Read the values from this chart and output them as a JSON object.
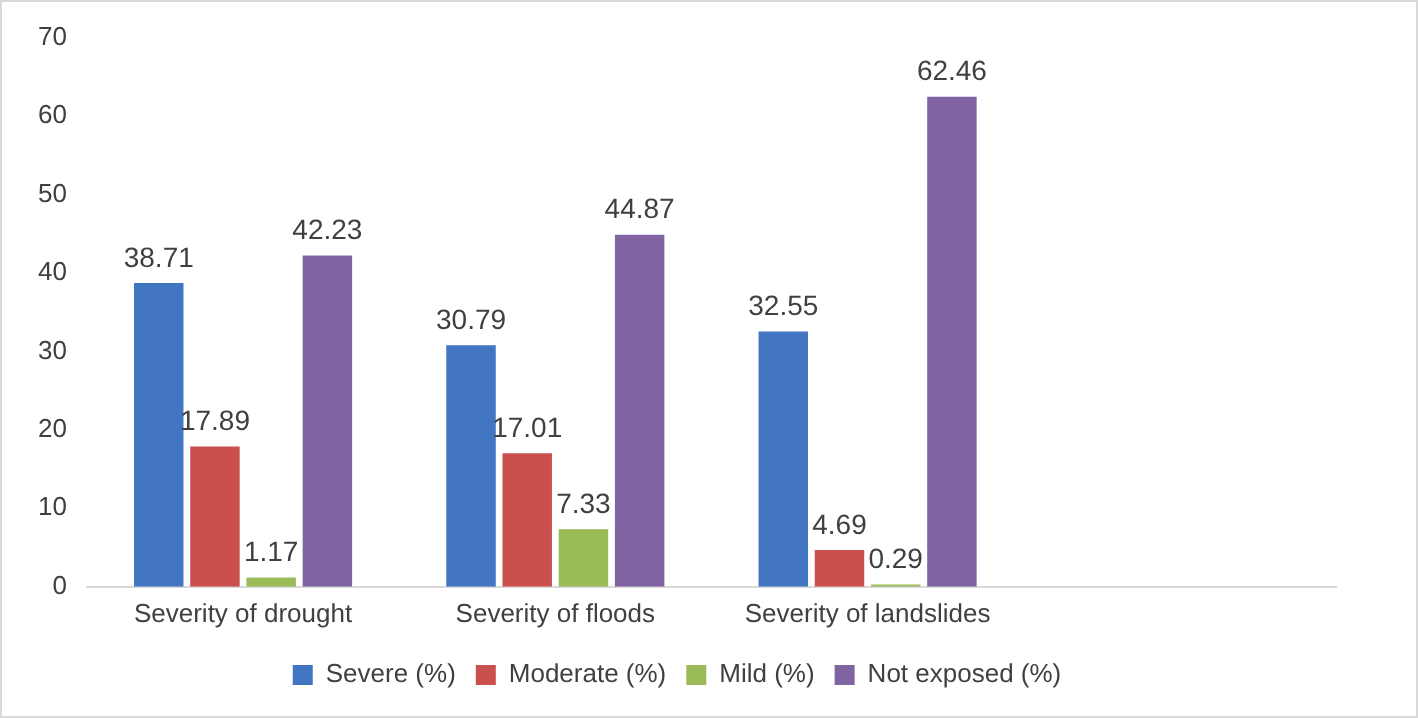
{
  "chart_data": {
    "type": "bar",
    "categories": [
      "Severity of drought",
      "Severity of floods",
      "Severity of landslides",
      null
    ],
    "series": [
      {
        "name": "Severe (%)",
        "color": "#4275c2",
        "values": [
          38.71,
          30.79,
          32.55,
          null
        ]
      },
      {
        "name": "Moderate (%)",
        "color": "#c9504c",
        "values": [
          17.89,
          17.01,
          4.69,
          null
        ]
      },
      {
        "name": "Mild (%)",
        "color": "#9bbb59",
        "values": [
          1.17,
          7.33,
          0.29,
          null
        ]
      },
      {
        "name": "Not exposed (%)",
        "color": "#8064a2",
        "values": [
          42.23,
          44.87,
          62.46,
          null
        ]
      }
    ],
    "ylim": [
      0,
      70
    ],
    "yticks": [
      0,
      10,
      20,
      30,
      40,
      50,
      60,
      70
    ],
    "grid": false,
    "legend": "bottom",
    "data_labels": true
  }
}
